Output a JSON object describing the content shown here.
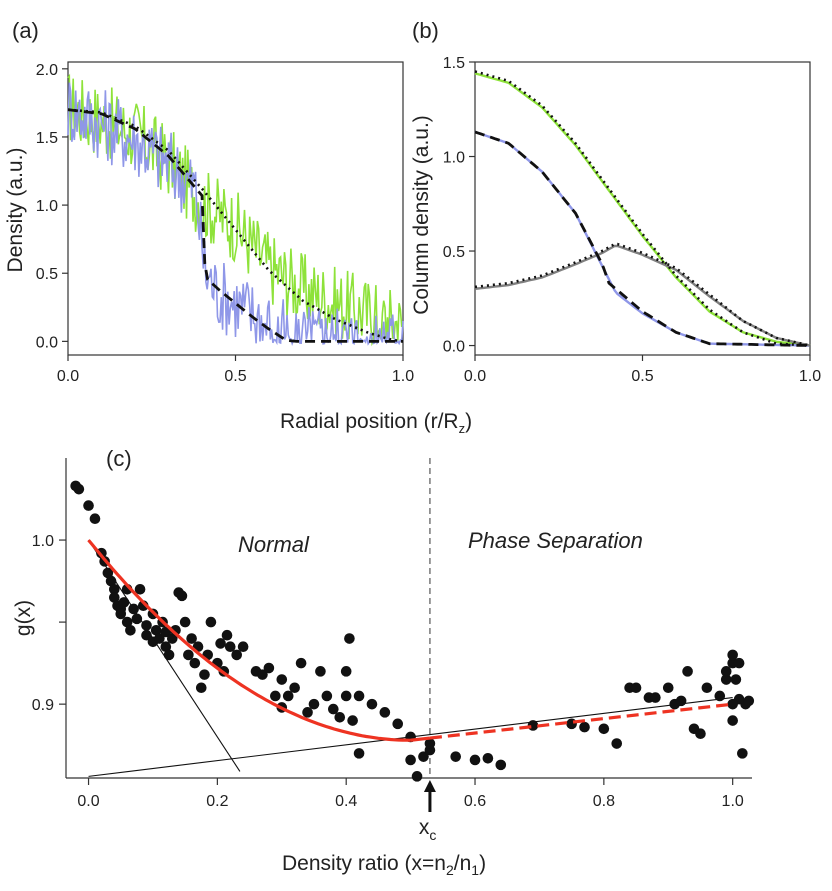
{
  "figure": {
    "panel_labels": [
      "(a)",
      "(b)",
      "(c)"
    ],
    "shared_xlabel_top": "Radial position (r/R",
    "shared_xlabel_top_sub": "z",
    "shared_xlabel_top_end": ")"
  },
  "chart_data": [
    {
      "panel": "(a)",
      "type": "line",
      "title": "",
      "xlabel": "Radial position (r/Rz)",
      "ylabel": "Density (a.u.)",
      "xlim": [
        0.0,
        1.0
      ],
      "ylim": [
        -0.1,
        2.05
      ],
      "xticks": [
        "0.0",
        "0.5",
        "1.0"
      ],
      "yticks": [
        "0.0",
        "0.5",
        "1.0",
        "1.5",
        "2.0"
      ],
      "colors": {
        "green": "#8ee23a",
        "blue": "#8f97e8",
        "fit": "#111111"
      },
      "series": [
        {
          "name": "green noisy data",
          "style": "noisy",
          "color": "green",
          "points": [
            [
              0,
              1.72
            ],
            [
              0.1,
              1.62
            ],
            [
              0.2,
              1.52
            ],
            [
              0.3,
              1.32
            ],
            [
              0.4,
              1.02
            ],
            [
              0.5,
              0.85
            ],
            [
              0.6,
              0.55
            ],
            [
              0.7,
              0.38
            ],
            [
              0.8,
              0.28
            ],
            [
              0.9,
              0.2
            ],
            [
              1.0,
              0.12
            ]
          ]
        },
        {
          "name": "blue noisy data",
          "style": "noisy",
          "color": "blue",
          "points": [
            [
              0,
              1.72
            ],
            [
              0.1,
              1.6
            ],
            [
              0.2,
              1.48
            ],
            [
              0.3,
              1.3
            ],
            [
              0.38,
              1.12
            ],
            [
              0.41,
              0.5
            ],
            [
              0.45,
              0.35
            ],
            [
              0.5,
              0.28
            ],
            [
              0.6,
              0.12
            ],
            [
              0.65,
              0.04
            ],
            [
              0.7,
              0.02
            ],
            [
              1.0,
              0.0
            ]
          ]
        },
        {
          "name": "dotted fit",
          "style": "dotted",
          "color": "fit",
          "points": [
            [
              0,
              1.7
            ],
            [
              0.1,
              1.68
            ],
            [
              0.2,
              1.58
            ],
            [
              0.3,
              1.4
            ],
            [
              0.4,
              1.12
            ],
            [
              0.5,
              0.82
            ],
            [
              0.6,
              0.52
            ],
            [
              0.7,
              0.3
            ],
            [
              0.8,
              0.16
            ],
            [
              0.9,
              0.06
            ],
            [
              0.97,
              0.01
            ],
            [
              1.0,
              0.0
            ]
          ]
        },
        {
          "name": "dashed fit",
          "style": "dashed",
          "color": "fit",
          "points": [
            [
              0,
              1.7
            ],
            [
              0.1,
              1.67
            ],
            [
              0.2,
              1.56
            ],
            [
              0.3,
              1.36
            ],
            [
              0.4,
              1.07
            ],
            [
              0.41,
              0.47
            ],
            [
              0.45,
              0.38
            ],
            [
              0.5,
              0.28
            ],
            [
              0.55,
              0.18
            ],
            [
              0.6,
              0.09
            ],
            [
              0.65,
              0.01
            ],
            [
              0.68,
              0.0
            ],
            [
              1.0,
              0.0
            ]
          ]
        }
      ]
    },
    {
      "panel": "(b)",
      "type": "line",
      "title": "",
      "xlabel": "Radial position (r/Rz)",
      "ylabel": "Column density (a.u.)",
      "xlim": [
        0.0,
        1.0
      ],
      "ylim": [
        -0.05,
        1.5
      ],
      "xticks": [
        "0.0",
        "0.5",
        "1.0"
      ],
      "yticks": [
        "0.0",
        "0.5",
        "1.0",
        "1.5"
      ],
      "colors": {
        "green": "#8ee23a",
        "blue": "#8f97e8",
        "gray": "#808080",
        "fit": "#111111"
      },
      "series": [
        {
          "name": "green data",
          "style": "solid",
          "color": "green",
          "points": [
            [
              0,
              1.44
            ],
            [
              0.1,
              1.39
            ],
            [
              0.2,
              1.26
            ],
            [
              0.3,
              1.06
            ],
            [
              0.4,
              0.82
            ],
            [
              0.5,
              0.58
            ],
            [
              0.6,
              0.36
            ],
            [
              0.7,
              0.18
            ],
            [
              0.8,
              0.07
            ],
            [
              0.9,
              0.02
            ],
            [
              1.0,
              0.0
            ]
          ]
        },
        {
          "name": "green dotted fit",
          "style": "dotted",
          "color": "fit",
          "points": [
            [
              0,
              1.45
            ],
            [
              0.1,
              1.4
            ],
            [
              0.2,
              1.27
            ],
            [
              0.3,
              1.07
            ],
            [
              0.4,
              0.83
            ],
            [
              0.5,
              0.59
            ],
            [
              0.6,
              0.37
            ],
            [
              0.7,
              0.19
            ],
            [
              0.8,
              0.07
            ],
            [
              0.9,
              0.01
            ],
            [
              1.0,
              0.0
            ]
          ]
        },
        {
          "name": "blue data",
          "style": "solid",
          "color": "blue",
          "points": [
            [
              0,
              1.13
            ],
            [
              0.1,
              1.07
            ],
            [
              0.2,
              0.92
            ],
            [
              0.3,
              0.7
            ],
            [
              0.38,
              0.42
            ],
            [
              0.42,
              0.28
            ],
            [
              0.5,
              0.17
            ],
            [
              0.6,
              0.07
            ],
            [
              0.7,
              0.01
            ],
            [
              1.0,
              0.0
            ]
          ]
        },
        {
          "name": "blue dashed fit",
          "style": "dashed",
          "color": "fit",
          "points": [
            [
              0,
              1.13
            ],
            [
              0.1,
              1.07
            ],
            [
              0.2,
              0.92
            ],
            [
              0.3,
              0.7
            ],
            [
              0.38,
              0.43
            ],
            [
              0.4,
              0.33
            ],
            [
              0.42,
              0.3
            ],
            [
              0.5,
              0.18
            ],
            [
              0.6,
              0.07
            ],
            [
              0.7,
              0.01
            ],
            [
              1.0,
              0.0
            ]
          ]
        },
        {
          "name": "gray data",
          "style": "solid",
          "color": "gray",
          "points": [
            [
              0,
              0.3
            ],
            [
              0.1,
              0.32
            ],
            [
              0.2,
              0.36
            ],
            [
              0.3,
              0.43
            ],
            [
              0.38,
              0.49
            ],
            [
              0.42,
              0.53
            ],
            [
              0.5,
              0.48
            ],
            [
              0.6,
              0.4
            ],
            [
              0.7,
              0.26
            ],
            [
              0.8,
              0.13
            ],
            [
              0.9,
              0.04
            ],
            [
              1.0,
              0.0
            ]
          ]
        },
        {
          "name": "gray dotted fit",
          "style": "dotted",
          "color": "fit",
          "points": [
            [
              0,
              0.31
            ],
            [
              0.1,
              0.33
            ],
            [
              0.2,
              0.37
            ],
            [
              0.3,
              0.44
            ],
            [
              0.38,
              0.5
            ],
            [
              0.42,
              0.54
            ],
            [
              0.5,
              0.49
            ],
            [
              0.6,
              0.41
            ],
            [
              0.7,
              0.27
            ],
            [
              0.8,
              0.13
            ],
            [
              0.9,
              0.04
            ],
            [
              1.0,
              0.0
            ]
          ]
        }
      ]
    },
    {
      "panel": "(c)",
      "type": "scatter",
      "title": "",
      "xlabel": "Density ratio (x=n2/n1)",
      "ylabel": "g(x)",
      "xlim": [
        -0.035,
        1.03
      ],
      "ylim": [
        0.855,
        1.05
      ],
      "xticks": [
        "0.0",
        "0.2",
        "0.4",
        "0.6",
        "0.8",
        "1.0"
      ],
      "yticks": [
        "0.9",
        "",
        "1.0"
      ],
      "ytick_values": [
        0.9,
        0.95,
        1.0
      ],
      "annotations": {
        "normal": "Normal",
        "phase": "Phase Separation",
        "xc_label": "x",
        "xc_sub": "c",
        "xc_value": 0.53
      },
      "colors": {
        "points": "#111111",
        "fit": "#ee3322",
        "line": "#111111"
      },
      "scatter": [
        [
          -0.02,
          1.033
        ],
        [
          -0.015,
          1.031
        ],
        [
          0.0,
          1.021
        ],
        [
          0.01,
          1.013
        ],
        [
          0.02,
          0.992
        ],
        [
          0.025,
          0.987
        ],
        [
          0.03,
          0.98
        ],
        [
          0.035,
          0.975
        ],
        [
          0.04,
          0.97
        ],
        [
          0.04,
          0.965
        ],
        [
          0.045,
          0.96
        ],
        [
          0.05,
          0.958
        ],
        [
          0.05,
          0.955
        ],
        [
          0.055,
          0.962
        ],
        [
          0.06,
          0.97
        ],
        [
          0.06,
          0.95
        ],
        [
          0.065,
          0.945
        ],
        [
          0.07,
          0.958
        ],
        [
          0.075,
          0.952
        ],
        [
          0.08,
          0.97
        ],
        [
          0.085,
          0.96
        ],
        [
          0.09,
          0.948
        ],
        [
          0.09,
          0.942
        ],
        [
          0.1,
          0.955
        ],
        [
          0.1,
          0.938
        ],
        [
          0.105,
          0.945
        ],
        [
          0.11,
          0.94
        ],
        [
          0.115,
          0.95
        ],
        [
          0.12,
          0.935
        ],
        [
          0.12,
          0.944
        ],
        [
          0.125,
          0.93
        ],
        [
          0.13,
          0.94
        ],
        [
          0.135,
          0.945
        ],
        [
          0.14,
          0.968
        ],
        [
          0.145,
          0.966
        ],
        [
          0.15,
          0.95
        ],
        [
          0.155,
          0.93
        ],
        [
          0.16,
          0.94
        ],
        [
          0.165,
          0.925
        ],
        [
          0.17,
          0.935
        ],
        [
          0.175,
          0.91
        ],
        [
          0.18,
          0.918
        ],
        [
          0.185,
          0.93
        ],
        [
          0.19,
          0.95
        ],
        [
          0.2,
          0.925
        ],
        [
          0.205,
          0.937
        ],
        [
          0.21,
          0.92
        ],
        [
          0.215,
          0.942
        ],
        [
          0.22,
          0.935
        ],
        [
          0.23,
          0.93
        ],
        [
          0.24,
          0.935
        ],
        [
          0.26,
          0.92
        ],
        [
          0.27,
          0.918
        ],
        [
          0.28,
          0.922
        ],
        [
          0.29,
          0.905
        ],
        [
          0.3,
          0.898
        ],
        [
          0.3,
          0.915
        ],
        [
          0.31,
          0.905
        ],
        [
          0.32,
          0.91
        ],
        [
          0.33,
          0.925
        ],
        [
          0.34,
          0.895
        ],
        [
          0.35,
          0.9
        ],
        [
          0.36,
          0.92
        ],
        [
          0.37,
          0.905
        ],
        [
          0.38,
          0.897
        ],
        [
          0.39,
          0.892
        ],
        [
          0.4,
          0.905
        ],
        [
          0.4,
          0.92
        ],
        [
          0.405,
          0.94
        ],
        [
          0.41,
          0.89
        ],
        [
          0.42,
          0.87
        ],
        [
          0.42,
          0.905
        ],
        [
          0.44,
          0.9
        ],
        [
          0.46,
          0.895
        ],
        [
          0.48,
          0.888
        ],
        [
          0.5,
          0.866
        ],
        [
          0.5,
          0.88
        ],
        [
          0.51,
          0.856
        ],
        [
          0.52,
          0.868
        ],
        [
          0.53,
          0.872
        ],
        [
          0.53,
          0.876
        ],
        [
          0.57,
          0.868
        ],
        [
          0.6,
          0.866
        ],
        [
          0.62,
          0.867
        ],
        [
          0.64,
          0.863
        ],
        [
          0.69,
          0.887
        ],
        [
          0.75,
          0.888
        ],
        [
          0.77,
          0.886
        ],
        [
          0.8,
          0.885
        ],
        [
          0.82,
          0.876
        ],
        [
          0.84,
          0.91
        ],
        [
          0.85,
          0.91
        ],
        [
          0.87,
          0.904
        ],
        [
          0.88,
          0.904
        ],
        [
          0.9,
          0.91
        ],
        [
          0.91,
          0.9
        ],
        [
          0.92,
          0.902
        ],
        [
          0.93,
          0.92
        ],
        [
          0.94,
          0.885
        ],
        [
          0.95,
          0.882
        ],
        [
          0.96,
          0.91
        ],
        [
          0.98,
          0.905
        ],
        [
          0.99,
          0.915
        ],
        [
          0.99,
          0.92
        ],
        [
          1.0,
          0.925
        ],
        [
          1.0,
          0.93
        ],
        [
          1.005,
          0.915
        ],
        [
          1.01,
          0.925
        ],
        [
          1.015,
          0.87
        ],
        [
          1.02,
          0.9
        ],
        [
          1.025,
          0.902
        ],
        [
          1.0,
          0.89
        ],
        [
          1.01,
          0.903
        ],
        [
          1.0,
          0.9
        ]
      ],
      "fit_curve": {
        "type": "quadratic-then-linear",
        "x0": 0.0,
        "y0": 1.0,
        "xmin": 0.5,
        "ymin": 0.878,
        "x_end": 1.0,
        "y_end": 0.9
      },
      "guide_lines": [
        {
          "x": [
            0.0,
            0.235
          ],
          "y": [
            1.0,
            0.859
          ]
        },
        {
          "x": [
            0.0,
            1.0
          ],
          "y": [
            0.856,
            0.904
          ]
        }
      ]
    }
  ]
}
